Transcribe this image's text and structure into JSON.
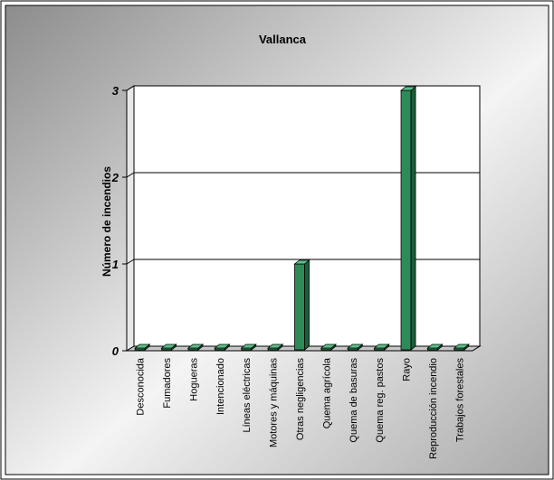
{
  "chart_data": {
    "type": "bar",
    "title": "Vallanca",
    "xlabel": "",
    "ylabel": "Número de incendios",
    "categories": [
      "Desconocida",
      "Fumadores",
      "Hogueras",
      "Intencionado",
      "Líneas eléctricas",
      "Motores y máquinas",
      "Otras negligencias",
      "Quema agrícola",
      "Quema de basuras",
      "Quema reg. pastos",
      "Rayo",
      "Reproducción incendio",
      "Trabajos forestales"
    ],
    "values": [
      0,
      0,
      0,
      0,
      0,
      0,
      1,
      0,
      0,
      0,
      3,
      0,
      0
    ],
    "ylim": [
      0,
      3
    ],
    "yticks": [
      0,
      1,
      2,
      3
    ],
    "grid": true,
    "legend": "none",
    "colors": {
      "bar_front": "#2e8b57",
      "bar_side": "#1b5e3a",
      "bar_top": "#5cc08a",
      "background_dark": "#9a9a9a",
      "background_light": "#ffffff"
    }
  }
}
